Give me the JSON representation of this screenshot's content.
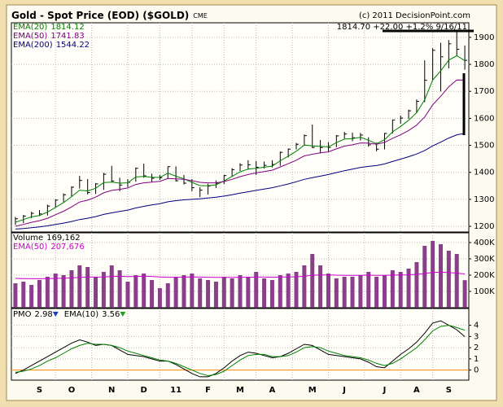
{
  "chart_data": [
    {
      "type": "ohlc",
      "title": "Gold - Spot Price (EOD) ($GOLD)",
      "exchange": "CME",
      "copyright": "(c) 2011 DecisionPoint.com",
      "quote": "1814.70 +22.00 +1.2% 9/16/11",
      "color": "#000000",
      "high": [
        1235,
        1242,
        1254,
        1260,
        1280,
        1300,
        1322,
        1348,
        1387,
        1375,
        1360,
        1398,
        1424,
        1380,
        1375,
        1418,
        1432,
        1395,
        1390,
        1422,
        1422,
        1390,
        1375,
        1345,
        1358,
        1370,
        1390,
        1415,
        1434,
        1445,
        1442,
        1440,
        1445,
        1477,
        1488,
        1509,
        1540,
        1577,
        1520,
        1512,
        1538,
        1550,
        1547,
        1546,
        1530,
        1510,
        1546,
        1595,
        1610,
        1632,
        1670,
        1815,
        1860,
        1880,
        1890,
        1920,
        1870
      ],
      "low": [
        1205,
        1212,
        1230,
        1238,
        1240,
        1270,
        1290,
        1310,
        1340,
        1318,
        1320,
        1335,
        1365,
        1330,
        1345,
        1365,
        1380,
        1365,
        1372,
        1378,
        1366,
        1355,
        1330,
        1308,
        1318,
        1342,
        1357,
        1383,
        1405,
        1410,
        1390,
        1414,
        1418,
        1424,
        1455,
        1485,
        1500,
        1490,
        1470,
        1478,
        1493,
        1525,
        1515,
        1518,
        1495,
        1478,
        1485,
        1544,
        1580,
        1598,
        1620,
        1660,
        1740,
        1700,
        1785,
        1830,
        1780
      ],
      "close": [
        1228,
        1238,
        1248,
        1246,
        1275,
        1297,
        1317,
        1345,
        1370,
        1325,
        1357,
        1393,
        1368,
        1353,
        1363,
        1415,
        1387,
        1378,
        1380,
        1421,
        1369,
        1360,
        1343,
        1334,
        1349,
        1360,
        1388,
        1410,
        1427,
        1428,
        1419,
        1426,
        1429,
        1474,
        1486,
        1504,
        1536,
        1492,
        1492,
        1492,
        1535,
        1542,
        1528,
        1538,
        1502,
        1486,
        1544,
        1594,
        1601,
        1628,
        1663,
        1741,
        1852,
        1828,
        1876,
        1856,
        1815
      ],
      "series": [
        {
          "name": "EMA(20)",
          "last_label": "1814.12",
          "color": "#008000",
          "values": [
            1215,
            1225,
            1235,
            1240,
            1253,
            1270,
            1288,
            1310,
            1334,
            1331,
            1341,
            1362,
            1364,
            1360,
            1361,
            1383,
            1385,
            1382,
            1381,
            1397,
            1386,
            1376,
            1363,
            1351,
            1350,
            1354,
            1368,
            1385,
            1402,
            1412,
            1415,
            1419,
            1423,
            1443,
            1460,
            1478,
            1501,
            1498,
            1496,
            1494,
            1510,
            1523,
            1525,
            1530,
            1519,
            1506,
            1521,
            1550,
            1570,
            1593,
            1621,
            1669,
            1742,
            1776,
            1816,
            1832,
            1814.12
          ]
        },
        {
          "name": "EMA(50)",
          "last_label": "1741.83",
          "color": "#800080",
          "values": [
            1200,
            1207,
            1215,
            1221,
            1230,
            1243,
            1256,
            1272,
            1290,
            1297,
            1308,
            1324,
            1333,
            1337,
            1342,
            1355,
            1361,
            1364,
            1367,
            1377,
            1376,
            1374,
            1369,
            1363,
            1361,
            1361,
            1366,
            1374,
            1384,
            1392,
            1398,
            1403,
            1408,
            1420,
            1432,
            1445,
            1461,
            1467,
            1472,
            1476,
            1487,
            1497,
            1502,
            1509,
            1508,
            1504,
            1511,
            1526,
            1539,
            1555,
            1575,
            1605,
            1650,
            1682,
            1717,
            1742,
            1741.83
          ]
        },
        {
          "name": "EMA(200)",
          "last_label": "1544.22",
          "color": "#000080",
          "values": [
            1190,
            1192,
            1195,
            1198,
            1202,
            1207,
            1212,
            1218,
            1225,
            1230,
            1236,
            1244,
            1250,
            1255,
            1260,
            1268,
            1274,
            1279,
            1284,
            1291,
            1295,
            1298,
            1300,
            1302,
            1305,
            1308,
            1312,
            1317,
            1323,
            1328,
            1333,
            1338,
            1343,
            1350,
            1357,
            1365,
            1374,
            1380,
            1386,
            1392,
            1399,
            1406,
            1412,
            1418,
            1422,
            1425,
            1431,
            1440,
            1449,
            1458,
            1468,
            1481,
            1498,
            1512,
            1527,
            1539,
            1544.22
          ]
        }
      ],
      "ylim": [
        1179,
        1954
      ],
      "yticks": [
        1200,
        1300,
        1400,
        1500,
        1600,
        1700,
        1800,
        1900
      ],
      "grid": true
    },
    {
      "type": "bar",
      "name": "Volume",
      "last_label": "169,162",
      "color": "#8a3f8a",
      "values": [
        150000,
        160000,
        140000,
        170000,
        190000,
        210000,
        200000,
        230000,
        260000,
        250000,
        190000,
        220000,
        260000,
        230000,
        160000,
        200000,
        210000,
        170000,
        120000,
        150000,
        190000,
        200000,
        210000,
        180000,
        170000,
        160000,
        190000,
        180000,
        200000,
        190000,
        220000,
        180000,
        170000,
        200000,
        210000,
        220000,
        260000,
        330000,
        260000,
        210000,
        180000,
        190000,
        190000,
        200000,
        220000,
        190000,
        200000,
        230000,
        220000,
        240000,
        280000,
        380000,
        410000,
        390000,
        350000,
        330000,
        169162
      ],
      "series": [
        {
          "name": "EMA(50)",
          "last_label": "207,676",
          "color": "#cc00cc",
          "values": [
            180000,
            179000,
            178000,
            178000,
            179000,
            180000,
            181000,
            183000,
            186000,
            188000,
            188000,
            189000,
            192000,
            193000,
            191000,
            192000,
            193000,
            192000,
            189000,
            187000,
            187000,
            188000,
            189000,
            188000,
            187000,
            186000,
            186000,
            186000,
            187000,
            187000,
            188000,
            188000,
            187000,
            188000,
            189000,
            190000,
            193000,
            199000,
            201000,
            201000,
            200000,
            199000,
            199000,
            199000,
            200000,
            199000,
            199000,
            200000,
            201000,
            202000,
            205000,
            210000,
            216000,
            218000,
            216000,
            212000,
            207676
          ]
        }
      ],
      "ylim": [
        0,
        460000
      ],
      "yticks": [
        {
          "value": 100000,
          "label": "100K"
        },
        {
          "value": 200000,
          "label": "200K"
        },
        {
          "value": 300000,
          "label": "300K"
        },
        {
          "value": 400000,
          "label": "400K"
        }
      ],
      "grid": true
    },
    {
      "type": "line",
      "categories": [
        null,
        null,
        null,
        "S",
        null,
        null,
        null,
        "O",
        null,
        null,
        null,
        null,
        "N",
        null,
        null,
        null,
        "D",
        null,
        null,
        null,
        "11",
        null,
        null,
        null,
        "F",
        null,
        null,
        null,
        "M",
        null,
        null,
        null,
        "A",
        null,
        null,
        null,
        null,
        "M",
        null,
        null,
        null,
        "J",
        null,
        null,
        null,
        null,
        "J",
        null,
        null,
        null,
        "A",
        null,
        null,
        null,
        "S",
        null,
        null
      ],
      "series": [
        {
          "name": "PMO",
          "last_label": "2.98",
          "color": "#000000",
          "values": [
            -0.3,
            0.0,
            0.4,
            0.8,
            1.2,
            1.6,
            2.0,
            2.4,
            2.7,
            2.5,
            2.2,
            2.3,
            2.2,
            1.8,
            1.4,
            1.3,
            1.2,
            1.0,
            0.8,
            0.8,
            0.5,
            0.1,
            -0.3,
            -0.6,
            -0.6,
            -0.3,
            0.2,
            0.8,
            1.3,
            1.6,
            1.5,
            1.3,
            1.1,
            1.2,
            1.5,
            1.9,
            2.3,
            2.2,
            1.8,
            1.4,
            1.3,
            1.2,
            1.1,
            1.0,
            0.7,
            0.3,
            0.2,
            0.8,
            1.4,
            1.9,
            2.5,
            3.3,
            4.2,
            4.4,
            4.0,
            3.6,
            2.98
          ]
        },
        {
          "name": "EMA(10)",
          "last_label": "3.56",
          "color": "#008000",
          "values": [
            -0.2,
            -0.1,
            0.1,
            0.4,
            0.8,
            1.1,
            1.5,
            1.9,
            2.2,
            2.4,
            2.3,
            2.3,
            2.2,
            2.0,
            1.7,
            1.5,
            1.3,
            1.1,
            0.9,
            0.8,
            0.6,
            0.3,
            0.0,
            -0.3,
            -0.5,
            -0.4,
            -0.1,
            0.4,
            0.9,
            1.3,
            1.4,
            1.4,
            1.2,
            1.2,
            1.3,
            1.6,
            2.0,
            2.1,
            2.0,
            1.7,
            1.5,
            1.3,
            1.2,
            1.1,
            0.9,
            0.6,
            0.4,
            0.6,
            1.0,
            1.5,
            2.0,
            2.7,
            3.5,
            3.9,
            4.0,
            3.8,
            3.56
          ]
        }
      ],
      "zero_line_color": "#ff8c00",
      "ylim": [
        -0.9,
        5.5
      ],
      "yticks": [
        0,
        1,
        2,
        3,
        4
      ],
      "grid": true
    }
  ]
}
